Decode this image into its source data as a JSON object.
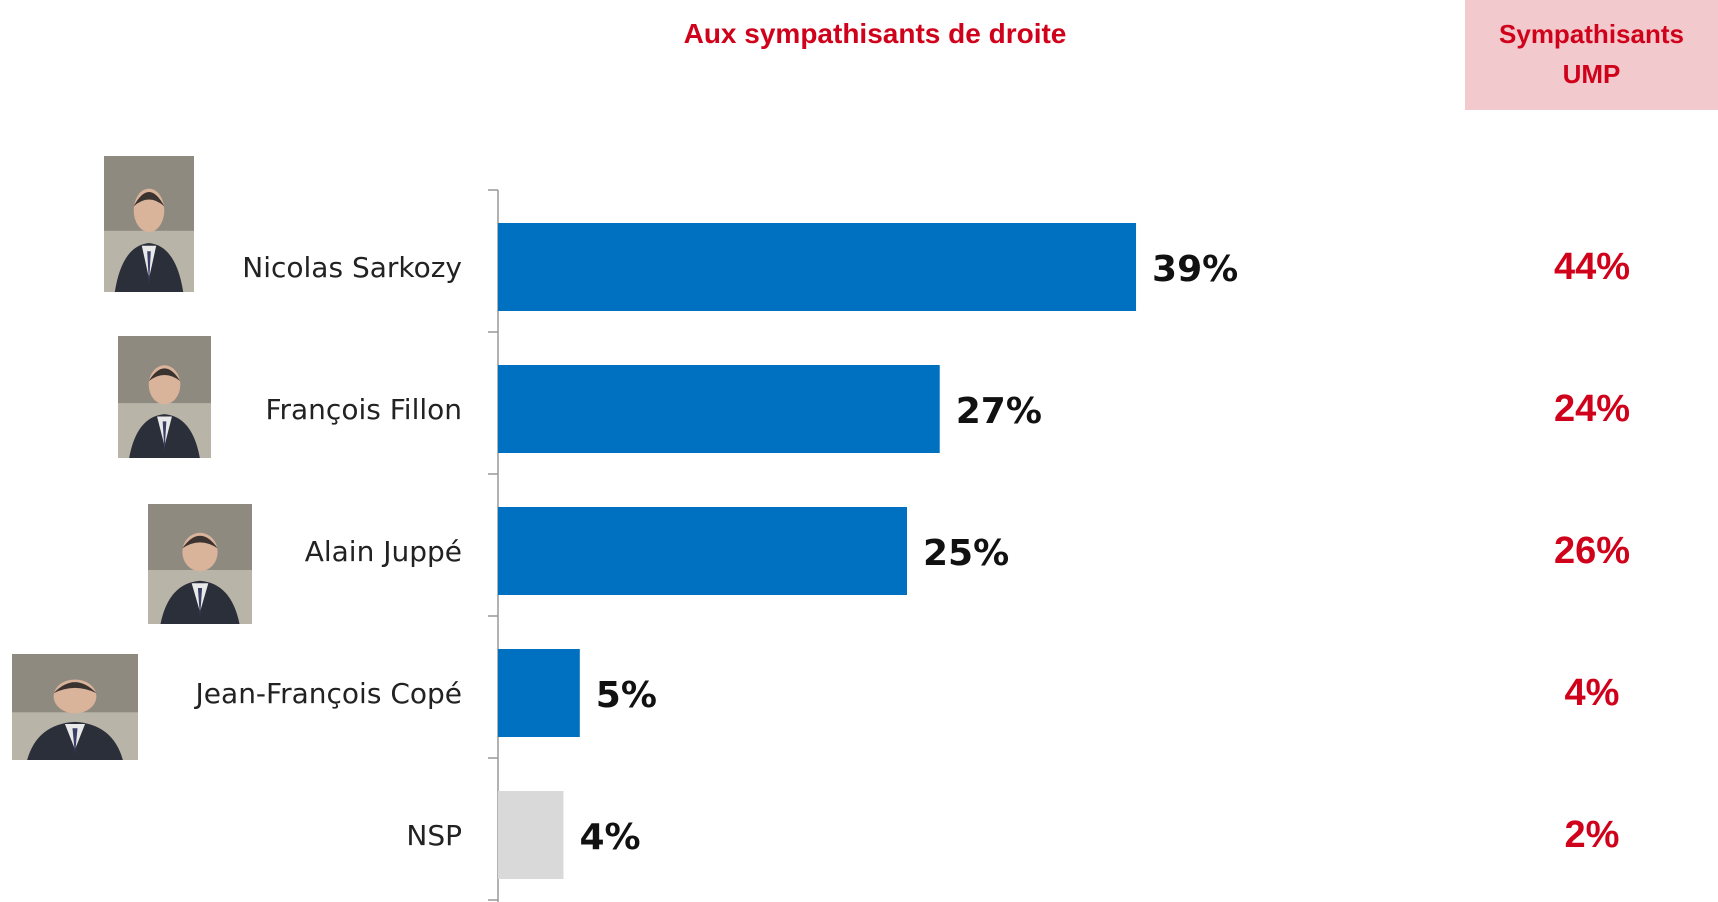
{
  "chart_data": {
    "type": "bar",
    "orientation": "horizontal",
    "title": "Aux sympathisants de droite",
    "categories": [
      "Nicolas Sarkozy",
      "François Fillon",
      "Alain Juppé",
      "Jean-François Copé",
      "NSP"
    ],
    "values": [
      39,
      27,
      25,
      5,
      4
    ],
    "value_labels": [
      "39%",
      "27%",
      "25%",
      "5%",
      "4%"
    ],
    "bar_colors": [
      "#0070c0",
      "#0070c0",
      "#0070c0",
      "#0070c0",
      "#d9d9d9"
    ],
    "xlim": [
      0,
      60
    ],
    "grid": false,
    "secondary_column": {
      "header": "Sympathisants UMP",
      "header_line1": "Sympathisants",
      "header_line2": "UMP",
      "values": [
        44,
        24,
        26,
        4,
        2
      ],
      "labels": [
        "44%",
        "24%",
        "26%",
        "4%",
        "2%"
      ]
    },
    "photos": [
      "person-photo",
      "person-photo",
      "person-photo",
      "person-photo",
      null
    ]
  },
  "colors": {
    "accent": "#d0021b",
    "bar": "#0070c0",
    "bar_nsp": "#d9d9d9",
    "header_bg": "#f2c9cc"
  }
}
